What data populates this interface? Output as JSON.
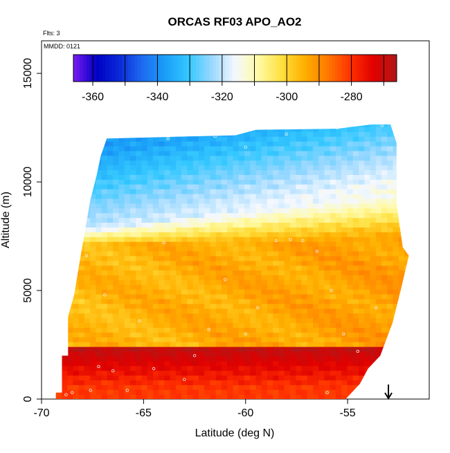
{
  "chart_data": {
    "type": "heatmap",
    "title": "ORCAS RF03 APO_AO2",
    "annotations": [
      "Flts: 3",
      "MMDD: 0121"
    ],
    "xlabel": "Latitude (deg N)",
    "ylabel": "Altitude (m)",
    "xlim": [
      -70,
      -51
    ],
    "ylim": [
      0,
      16500
    ],
    "x_ticks": [
      -70,
      -65,
      -60,
      -55
    ],
    "y_ticks": [
      0,
      5000,
      10000,
      15000
    ],
    "colorbar": {
      "range": [
        -366,
        -266
      ],
      "ticks": [
        -360,
        -340,
        -320,
        -300,
        -280
      ],
      "colors": [
        "#7a1cf0",
        "#0000c4",
        "#0a2ad8",
        "#1e6cf0",
        "#1aa0f8",
        "#34c8ff",
        "#9ad8ff",
        "#f4f8ff",
        "#fffaa6",
        "#ffe040",
        "#ffb000",
        "#ff7a00",
        "#ff3000",
        "#e00000",
        "#b01818"
      ]
    },
    "surface": {
      "x_range": [
        -69.3,
        -52.2
      ],
      "low_altitude_layer": {
        "below": 2000,
        "value": -278
      },
      "mid_altitude_layer": {
        "range": [
          2000,
          7000
        ],
        "value": -294
      },
      "transition_layer": {
        "range": [
          7000,
          8500
        ],
        "value": -312
      },
      "upper_layer": {
        "range": [
          8500,
          12500
        ],
        "value": -325
      },
      "top_edge_south": 12000,
      "top_edge_north": 12650
    },
    "observation_points": [
      {
        "x": -68.8,
        "y": 200
      },
      {
        "x": -68.5,
        "y": 300
      },
      {
        "x": -67.6,
        "y": 400
      },
      {
        "x": -67.2,
        "y": 1500
      },
      {
        "x": -66.5,
        "y": 1300
      },
      {
        "x": -65.8,
        "y": 400
      },
      {
        "x": -64.5,
        "y": 1400
      },
      {
        "x": -63.0,
        "y": 900
      },
      {
        "x": -62.5,
        "y": 2000
      },
      {
        "x": -61.8,
        "y": 3200
      },
      {
        "x": -61.0,
        "y": 5500
      },
      {
        "x": -60.0,
        "y": 3000
      },
      {
        "x": -59.4,
        "y": 4200
      },
      {
        "x": -58.5,
        "y": 7300
      },
      {
        "x": -57.8,
        "y": 7350
      },
      {
        "x": -57.2,
        "y": 7300
      },
      {
        "x": -56.5,
        "y": 6800
      },
      {
        "x": -55.8,
        "y": 5000
      },
      {
        "x": -55.2,
        "y": 3000
      },
      {
        "x": -54.5,
        "y": 2200
      },
      {
        "x": -53.6,
        "y": 4200
      },
      {
        "x": -64.0,
        "y": 7200
      },
      {
        "x": -65.2,
        "y": 3600
      },
      {
        "x": -66.9,
        "y": 4800
      },
      {
        "x": -67.8,
        "y": 6600
      },
      {
        "x": -63.8,
        "y": 12000
      },
      {
        "x": -61.5,
        "y": 12100
      },
      {
        "x": -58.0,
        "y": 12200
      },
      {
        "x": -55.5,
        "y": 12500
      },
      {
        "x": -53.3,
        "y": 12600
      },
      {
        "x": -60.0,
        "y": 11600
      },
      {
        "x": -56.0,
        "y": 300
      }
    ],
    "marker": {
      "type": "arrow-down",
      "x": -53.0
    }
  }
}
